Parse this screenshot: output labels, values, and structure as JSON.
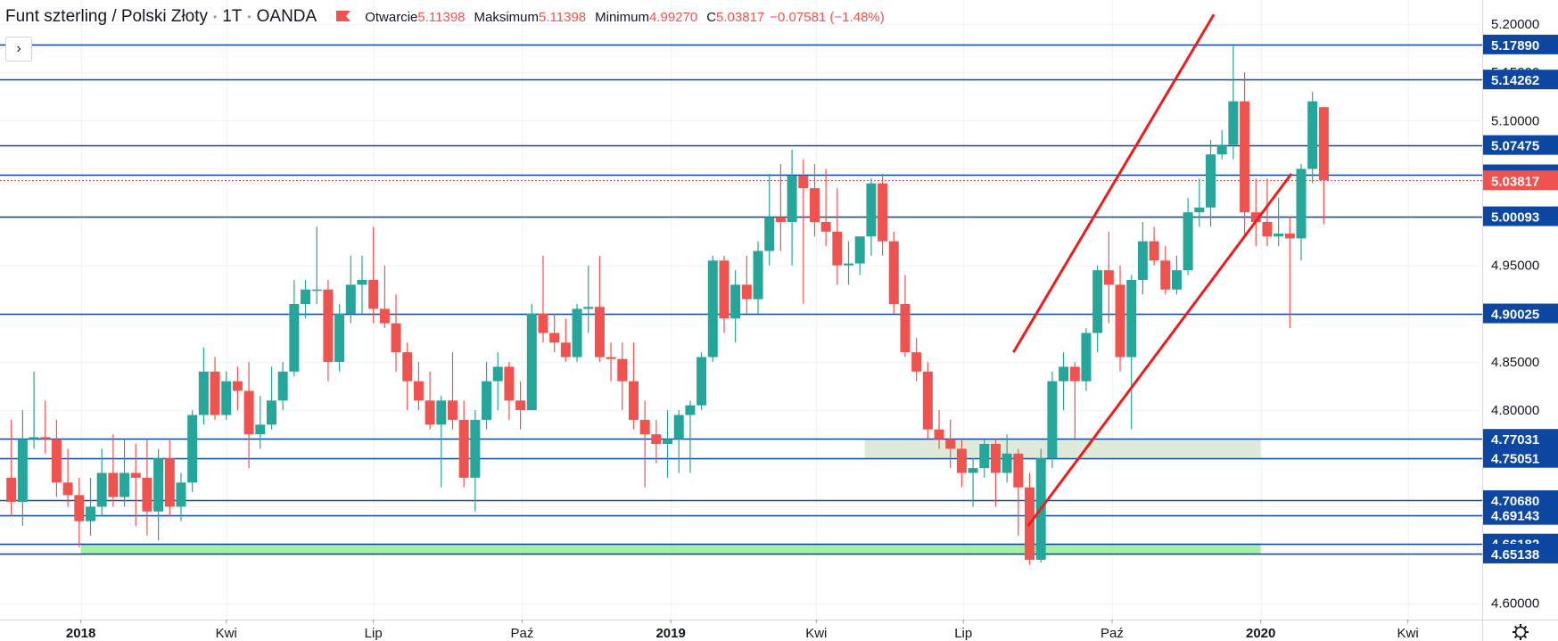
{
  "header": {
    "symbol": "Funt szterling / Polski Złoty",
    "interval": "1T",
    "source": "OANDA",
    "open_label": "Otwarcie",
    "open_value": "5.11398",
    "high_label": "Maksimum",
    "high_value": "5.11398",
    "low_label": "Minimum",
    "low_value": "4.99270",
    "close_label": "C",
    "close_value": "5.03817",
    "change_text": "−0.07581 (−1.48%)",
    "toggle_glyph": "›"
  },
  "colors": {
    "up": "#26a69a",
    "down": "#ef5350",
    "level_line": "#0d47a1",
    "current_price": "#ef5350",
    "trend_line": "#ee1c1c",
    "zone_green": "#9af09a",
    "zone_gray": "#dde8d6"
  },
  "chart_data": {
    "type": "candlestick",
    "instrument": "GBP/PLN",
    "ylim": [
      4.583,
      5.225
    ],
    "yticks": [
      "5.20000",
      "5.15000",
      "5.10000",
      "5.05000",
      "5.00000",
      "4.95000",
      "4.90000",
      "4.85000",
      "4.80000",
      "4.75000",
      "4.70000",
      "4.65000",
      "4.60000"
    ],
    "xlim": [
      "2017-11-12",
      "2020-05-17"
    ],
    "xticks": [
      {
        "date": "2018-01-01",
        "label": "2018",
        "bold": true
      },
      {
        "date": "2018-04-01",
        "label": "Kwi",
        "bold": false
      },
      {
        "date": "2018-07-01",
        "label": "Lip",
        "bold": false
      },
      {
        "date": "2018-10-01",
        "label": "Paź",
        "bold": false
      },
      {
        "date": "2019-01-01",
        "label": "2019",
        "bold": true
      },
      {
        "date": "2019-04-01",
        "label": "Kwi",
        "bold": false
      },
      {
        "date": "2019-07-01",
        "label": "Lip",
        "bold": false
      },
      {
        "date": "2019-10-01",
        "label": "Paź",
        "bold": false
      },
      {
        "date": "2020-01-01",
        "label": "2020",
        "bold": true
      },
      {
        "date": "2020-04-01",
        "label": "Kwi",
        "bold": false
      }
    ],
    "current_price": "5.03817",
    "horizontal_levels": [
      "5.17890",
      "5.14262",
      "5.07475",
      "5.04440",
      "5.00093",
      "4.90025",
      "4.77031",
      "4.75051",
      "4.70680",
      "4.69143",
      "4.66182",
      "4.65138"
    ],
    "zones": [
      {
        "from": "2018-01-01",
        "to": "2020-01-01",
        "low": 4.65138,
        "high": 4.66182,
        "color": "green"
      },
      {
        "from": "2019-05-01",
        "to": "2020-01-01",
        "low": 4.75051,
        "high": 4.77031,
        "color": "gray"
      }
    ],
    "trend_lines": [
      {
        "x1": "2019-08-01",
        "y1": 4.86,
        "x2": "2019-12-03",
        "y2": 5.21
      },
      {
        "x1": "2019-08-10",
        "y1": 4.68,
        "x2": "2020-01-20",
        "y2": 5.045
      }
    ],
    "candles": [
      {
        "t": "2017-11-19",
        "o": 4.73,
        "h": 4.79,
        "l": 4.69,
        "c": 4.705
      },
      {
        "t": "2017-11-26",
        "o": 4.705,
        "h": 4.8,
        "l": 4.68,
        "c": 4.77
      },
      {
        "t": "2017-12-03",
        "o": 4.77,
        "h": 4.84,
        "l": 4.76,
        "c": 4.772
      },
      {
        "t": "2017-12-10",
        "o": 4.772,
        "h": 4.81,
        "l": 4.755,
        "c": 4.77
      },
      {
        "t": "2017-12-17",
        "o": 4.77,
        "h": 4.79,
        "l": 4.71,
        "c": 4.725
      },
      {
        "t": "2017-12-24",
        "o": 4.725,
        "h": 4.76,
        "l": 4.7,
        "c": 4.712
      },
      {
        "t": "2017-12-31",
        "o": 4.712,
        "h": 4.73,
        "l": 4.658,
        "c": 4.685
      },
      {
        "t": "2018-01-07",
        "o": 4.685,
        "h": 4.73,
        "l": 4.67,
        "c": 4.7
      },
      {
        "t": "2018-01-14",
        "o": 4.7,
        "h": 4.76,
        "l": 4.69,
        "c": 4.735
      },
      {
        "t": "2018-01-21",
        "o": 4.735,
        "h": 4.775,
        "l": 4.7,
        "c": 4.71
      },
      {
        "t": "2018-01-28",
        "o": 4.71,
        "h": 4.77,
        "l": 4.7,
        "c": 4.735
      },
      {
        "t": "2018-02-04",
        "o": 4.735,
        "h": 4.765,
        "l": 4.68,
        "c": 4.73
      },
      {
        "t": "2018-02-11",
        "o": 4.73,
        "h": 4.77,
        "l": 4.67,
        "c": 4.695
      },
      {
        "t": "2018-02-18",
        "o": 4.695,
        "h": 4.76,
        "l": 4.665,
        "c": 4.75
      },
      {
        "t": "2018-02-25",
        "o": 4.75,
        "h": 4.77,
        "l": 4.69,
        "c": 4.7
      },
      {
        "t": "2018-03-04",
        "o": 4.7,
        "h": 4.735,
        "l": 4.685,
        "c": 4.725
      },
      {
        "t": "2018-03-11",
        "o": 4.725,
        "h": 4.8,
        "l": 4.715,
        "c": 4.795
      },
      {
        "t": "2018-03-18",
        "o": 4.795,
        "h": 4.865,
        "l": 4.785,
        "c": 4.84
      },
      {
        "t": "2018-03-25",
        "o": 4.84,
        "h": 4.855,
        "l": 4.79,
        "c": 4.795
      },
      {
        "t": "2018-04-01",
        "o": 4.795,
        "h": 4.84,
        "l": 4.79,
        "c": 4.83
      },
      {
        "t": "2018-04-08",
        "o": 4.83,
        "h": 4.845,
        "l": 4.8,
        "c": 4.82
      },
      {
        "t": "2018-04-15",
        "o": 4.82,
        "h": 4.85,
        "l": 4.74,
        "c": 4.775
      },
      {
        "t": "2018-04-22",
        "o": 4.775,
        "h": 4.815,
        "l": 4.76,
        "c": 4.785
      },
      {
        "t": "2018-04-29",
        "o": 4.785,
        "h": 4.845,
        "l": 4.78,
        "c": 4.81
      },
      {
        "t": "2018-05-06",
        "o": 4.81,
        "h": 4.85,
        "l": 4.8,
        "c": 4.84
      },
      {
        "t": "2018-05-13",
        "o": 4.84,
        "h": 4.935,
        "l": 4.835,
        "c": 4.91
      },
      {
        "t": "2018-05-20",
        "o": 4.91,
        "h": 4.935,
        "l": 4.895,
        "c": 4.925
      },
      {
        "t": "2018-05-27",
        "o": 4.925,
        "h": 4.99,
        "l": 4.91,
        "c": 4.925
      },
      {
        "t": "2018-06-03",
        "o": 4.925,
        "h": 4.935,
        "l": 4.83,
        "c": 4.85
      },
      {
        "t": "2018-06-10",
        "o": 4.85,
        "h": 4.91,
        "l": 4.84,
        "c": 4.9
      },
      {
        "t": "2018-06-17",
        "o": 4.9,
        "h": 4.96,
        "l": 4.89,
        "c": 4.93
      },
      {
        "t": "2018-06-24",
        "o": 4.93,
        "h": 4.96,
        "l": 4.9,
        "c": 4.935
      },
      {
        "t": "2018-07-01",
        "o": 4.935,
        "h": 4.99,
        "l": 4.89,
        "c": 4.905
      },
      {
        "t": "2018-07-08",
        "o": 4.905,
        "h": 4.95,
        "l": 4.885,
        "c": 4.89
      },
      {
        "t": "2018-07-15",
        "o": 4.89,
        "h": 4.92,
        "l": 4.84,
        "c": 4.86
      },
      {
        "t": "2018-07-22",
        "o": 4.86,
        "h": 4.87,
        "l": 4.8,
        "c": 4.83
      },
      {
        "t": "2018-07-29",
        "o": 4.83,
        "h": 4.85,
        "l": 4.8,
        "c": 4.81
      },
      {
        "t": "2018-08-05",
        "o": 4.81,
        "h": 4.84,
        "l": 4.78,
        "c": 4.785
      },
      {
        "t": "2018-08-12",
        "o": 4.785,
        "h": 4.815,
        "l": 4.72,
        "c": 4.81
      },
      {
        "t": "2018-08-19",
        "o": 4.81,
        "h": 4.86,
        "l": 4.78,
        "c": 4.79
      },
      {
        "t": "2018-08-26",
        "o": 4.79,
        "h": 4.81,
        "l": 4.72,
        "c": 4.73
      },
      {
        "t": "2018-09-02",
        "o": 4.73,
        "h": 4.8,
        "l": 4.695,
        "c": 4.79
      },
      {
        "t": "2018-09-09",
        "o": 4.79,
        "h": 4.85,
        "l": 4.78,
        "c": 4.83
      },
      {
        "t": "2018-09-16",
        "o": 4.83,
        "h": 4.86,
        "l": 4.8,
        "c": 4.845
      },
      {
        "t": "2018-09-23",
        "o": 4.845,
        "h": 4.85,
        "l": 4.79,
        "c": 4.81
      },
      {
        "t": "2018-09-30",
        "o": 4.81,
        "h": 4.83,
        "l": 4.78,
        "c": 4.8
      },
      {
        "t": "2018-10-07",
        "o": 4.8,
        "h": 4.91,
        "l": 4.8,
        "c": 4.9
      },
      {
        "t": "2018-10-14",
        "o": 4.9,
        "h": 4.96,
        "l": 4.87,
        "c": 4.88
      },
      {
        "t": "2018-10-21",
        "o": 4.88,
        "h": 4.9,
        "l": 4.86,
        "c": 4.87
      },
      {
        "t": "2018-10-28",
        "o": 4.87,
        "h": 4.895,
        "l": 4.85,
        "c": 4.855
      },
      {
        "t": "2018-11-04",
        "o": 4.855,
        "h": 4.91,
        "l": 4.85,
        "c": 4.905
      },
      {
        "t": "2018-11-11",
        "o": 4.905,
        "h": 4.95,
        "l": 4.88,
        "c": 4.907
      },
      {
        "t": "2018-11-18",
        "o": 4.907,
        "h": 4.96,
        "l": 4.85,
        "c": 4.855
      },
      {
        "t": "2018-11-25",
        "o": 4.855,
        "h": 4.87,
        "l": 4.83,
        "c": 4.853
      },
      {
        "t": "2018-12-02",
        "o": 4.853,
        "h": 4.87,
        "l": 4.8,
        "c": 4.83
      },
      {
        "t": "2018-12-09",
        "o": 4.83,
        "h": 4.87,
        "l": 4.78,
        "c": 4.79
      },
      {
        "t": "2018-12-16",
        "o": 4.79,
        "h": 4.81,
        "l": 4.72,
        "c": 4.775
      },
      {
        "t": "2018-12-23",
        "o": 4.775,
        "h": 4.79,
        "l": 4.745,
        "c": 4.765
      },
      {
        "t": "2018-12-30",
        "o": 4.765,
        "h": 4.8,
        "l": 4.73,
        "c": 4.77
      },
      {
        "t": "2019-01-06",
        "o": 4.77,
        "h": 4.8,
        "l": 4.735,
        "c": 4.795
      },
      {
        "t": "2019-01-13",
        "o": 4.795,
        "h": 4.81,
        "l": 4.735,
        "c": 4.805
      },
      {
        "t": "2019-01-20",
        "o": 4.805,
        "h": 4.86,
        "l": 4.8,
        "c": 4.855
      },
      {
        "t": "2019-01-27",
        "o": 4.855,
        "h": 4.96,
        "l": 4.85,
        "c": 4.955
      },
      {
        "t": "2019-02-03",
        "o": 4.955,
        "h": 4.96,
        "l": 4.88,
        "c": 4.895
      },
      {
        "t": "2019-02-10",
        "o": 4.895,
        "h": 4.945,
        "l": 4.87,
        "c": 4.93
      },
      {
        "t": "2019-02-17",
        "o": 4.93,
        "h": 4.96,
        "l": 4.9,
        "c": 4.915
      },
      {
        "t": "2019-02-24",
        "o": 4.915,
        "h": 4.975,
        "l": 4.9,
        "c": 4.965
      },
      {
        "t": "2019-03-03",
        "o": 4.965,
        "h": 5.045,
        "l": 4.95,
        "c": 5.0
      },
      {
        "t": "2019-03-10",
        "o": 5.0,
        "h": 5.055,
        "l": 4.965,
        "c": 4.995
      },
      {
        "t": "2019-03-17",
        "o": 4.995,
        "h": 5.07,
        "l": 4.95,
        "c": 5.043
      },
      {
        "t": "2019-03-24",
        "o": 5.043,
        "h": 5.06,
        "l": 4.91,
        "c": 5.03
      },
      {
        "t": "2019-03-31",
        "o": 5.03,
        "h": 5.055,
        "l": 4.98,
        "c": 4.995
      },
      {
        "t": "2019-04-07",
        "o": 4.995,
        "h": 5.05,
        "l": 4.97,
        "c": 4.985
      },
      {
        "t": "2019-04-14",
        "o": 4.985,
        "h": 5.03,
        "l": 4.93,
        "c": 4.95
      },
      {
        "t": "2019-04-21",
        "o": 4.95,
        "h": 4.975,
        "l": 4.93,
        "c": 4.952
      },
      {
        "t": "2019-04-28",
        "o": 4.952,
        "h": 4.98,
        "l": 4.94,
        "c": 4.98
      },
      {
        "t": "2019-05-05",
        "o": 4.98,
        "h": 5.04,
        "l": 4.96,
        "c": 5.035
      },
      {
        "t": "2019-05-12",
        "o": 5.035,
        "h": 5.045,
        "l": 4.96,
        "c": 4.975
      },
      {
        "t": "2019-05-19",
        "o": 4.975,
        "h": 4.985,
        "l": 4.9,
        "c": 4.91
      },
      {
        "t": "2019-05-26",
        "o": 4.91,
        "h": 4.94,
        "l": 4.855,
        "c": 4.86
      },
      {
        "t": "2019-06-02",
        "o": 4.86,
        "h": 4.875,
        "l": 4.83,
        "c": 4.84
      },
      {
        "t": "2019-06-09",
        "o": 4.84,
        "h": 4.85,
        "l": 4.77,
        "c": 4.78
      },
      {
        "t": "2019-06-16",
        "o": 4.78,
        "h": 4.8,
        "l": 4.76,
        "c": 4.77
      },
      {
        "t": "2019-06-23",
        "o": 4.77,
        "h": 4.79,
        "l": 4.74,
        "c": 4.76
      },
      {
        "t": "2019-06-30",
        "o": 4.76,
        "h": 4.77,
        "l": 4.72,
        "c": 4.735
      },
      {
        "t": "2019-07-07",
        "o": 4.735,
        "h": 4.75,
        "l": 4.7,
        "c": 4.74
      },
      {
        "t": "2019-07-14",
        "o": 4.74,
        "h": 4.77,
        "l": 4.73,
        "c": 4.765
      },
      {
        "t": "2019-07-21",
        "o": 4.765,
        "h": 4.77,
        "l": 4.7,
        "c": 4.735
      },
      {
        "t": "2019-07-28",
        "o": 4.735,
        "h": 4.775,
        "l": 4.725,
        "c": 4.755
      },
      {
        "t": "2019-08-04",
        "o": 4.755,
        "h": 4.76,
        "l": 4.67,
        "c": 4.72
      },
      {
        "t": "2019-08-11",
        "o": 4.72,
        "h": 4.735,
        "l": 4.64,
        "c": 4.645
      },
      {
        "t": "2019-08-18",
        "o": 4.645,
        "h": 4.76,
        "l": 4.642,
        "c": 4.75
      },
      {
        "t": "2019-08-25",
        "o": 4.75,
        "h": 4.84,
        "l": 4.74,
        "c": 4.83
      },
      {
        "t": "2019-09-01",
        "o": 4.83,
        "h": 4.86,
        "l": 4.8,
        "c": 4.845
      },
      {
        "t": "2019-09-08",
        "o": 4.845,
        "h": 4.85,
        "l": 4.77,
        "c": 4.83
      },
      {
        "t": "2019-09-15",
        "o": 4.83,
        "h": 4.885,
        "l": 4.82,
        "c": 4.88
      },
      {
        "t": "2019-09-22",
        "o": 4.88,
        "h": 4.95,
        "l": 4.86,
        "c": 4.945
      },
      {
        "t": "2019-09-29",
        "o": 4.945,
        "h": 4.985,
        "l": 4.89,
        "c": 4.93
      },
      {
        "t": "2019-10-06",
        "o": 4.93,
        "h": 4.95,
        "l": 4.84,
        "c": 4.855
      },
      {
        "t": "2019-10-13",
        "o": 4.855,
        "h": 4.94,
        "l": 4.78,
        "c": 4.935
      },
      {
        "t": "2019-10-20",
        "o": 4.935,
        "h": 4.995,
        "l": 4.92,
        "c": 4.975
      },
      {
        "t": "2019-10-27",
        "o": 4.975,
        "h": 4.99,
        "l": 4.95,
        "c": 4.955
      },
      {
        "t": "2019-11-03",
        "o": 4.955,
        "h": 4.97,
        "l": 4.92,
        "c": 4.925
      },
      {
        "t": "2019-11-10",
        "o": 4.925,
        "h": 4.96,
        "l": 4.92,
        "c": 4.945
      },
      {
        "t": "2019-11-17",
        "o": 4.945,
        "h": 5.02,
        "l": 4.94,
        "c": 5.005
      },
      {
        "t": "2019-11-24",
        "o": 5.005,
        "h": 5.04,
        "l": 4.99,
        "c": 5.01
      },
      {
        "t": "2019-12-01",
        "o": 5.01,
        "h": 5.08,
        "l": 4.99,
        "c": 5.065
      },
      {
        "t": "2019-12-08",
        "o": 5.065,
        "h": 5.09,
        "l": 5.06,
        "c": 5.075
      },
      {
        "t": "2019-12-15",
        "o": 5.075,
        "h": 5.178,
        "l": 5.06,
        "c": 5.12
      },
      {
        "t": "2019-12-22",
        "o": 5.12,
        "h": 5.15,
        "l": 4.98,
        "c": 5.005
      },
      {
        "t": "2019-12-29",
        "o": 5.005,
        "h": 5.04,
        "l": 4.97,
        "c": 4.995
      },
      {
        "t": "2020-01-05",
        "o": 4.995,
        "h": 5.04,
        "l": 4.97,
        "c": 4.98
      },
      {
        "t": "2020-01-12",
        "o": 4.98,
        "h": 5.02,
        "l": 4.97,
        "c": 4.983
      },
      {
        "t": "2020-01-19",
        "o": 4.983,
        "h": 5.0,
        "l": 4.885,
        "c": 4.978
      },
      {
        "t": "2020-01-26",
        "o": 4.978,
        "h": 5.055,
        "l": 4.955,
        "c": 5.05
      },
      {
        "t": "2020-02-02",
        "o": 5.05,
        "h": 5.13,
        "l": 5.035,
        "c": 5.12
      },
      {
        "t": "2020-02-09",
        "o": 5.11398,
        "h": 5.11398,
        "l": 4.9927,
        "c": 5.03817
      }
    ]
  }
}
